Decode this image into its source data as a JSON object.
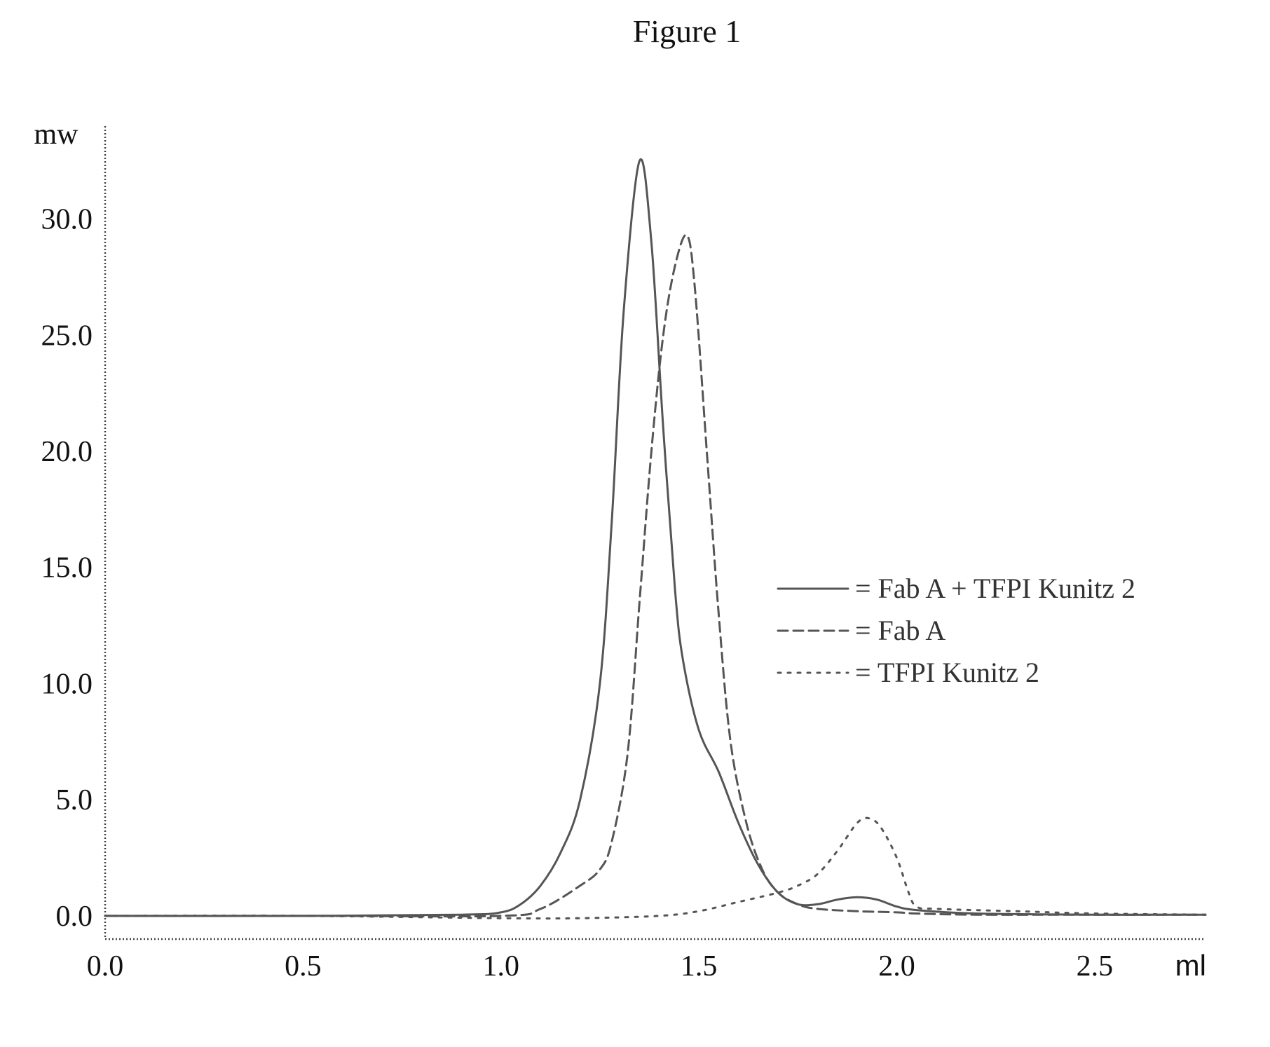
{
  "figure_title": "Figure 1",
  "chart_data": {
    "type": "line",
    "title": "Figure 1",
    "xlabel": "ml",
    "ylabel": "mw",
    "xlim": [
      0.0,
      2.78
    ],
    "ylim": [
      -1.0,
      34.0
    ],
    "x_ticks": [
      0.0,
      0.5,
      1.0,
      1.5,
      2.0,
      2.5
    ],
    "x_tick_labels": [
      "0.0",
      "0.5",
      "1.0",
      "1.5",
      "2.0",
      "2.5"
    ],
    "y_ticks": [
      0.0,
      5.0,
      10.0,
      15.0,
      20.0,
      25.0,
      30.0
    ],
    "y_tick_labels": [
      "0.0",
      "5.0",
      "10.0",
      "15.0",
      "20.0",
      "25.0",
      "30.0"
    ],
    "grid": false,
    "legend_position": "right",
    "series": [
      {
        "name": "Fab A + TFPI Kunitz 2",
        "style": "solid",
        "color": "#555555",
        "x": [
          0.0,
          0.5,
          0.9,
          1.0,
          1.05,
          1.1,
          1.15,
          1.2,
          1.25,
          1.28,
          1.31,
          1.35,
          1.38,
          1.41,
          1.44,
          1.46,
          1.5,
          1.55,
          1.6,
          1.65,
          1.7,
          1.75,
          1.8,
          1.85,
          1.9,
          1.95,
          2.0,
          2.05,
          2.2,
          2.5,
          2.78
        ],
        "y": [
          0.0,
          0.0,
          0.05,
          0.15,
          0.5,
          1.3,
          2.7,
          5.0,
          10.0,
          17.0,
          26.0,
          32.5,
          29.0,
          21.0,
          14.0,
          11.0,
          8.0,
          6.2,
          4.0,
          2.2,
          1.0,
          0.5,
          0.5,
          0.7,
          0.8,
          0.7,
          0.4,
          0.25,
          0.1,
          0.05,
          0.05
        ]
      },
      {
        "name": "Fab A",
        "style": "dashed",
        "color": "#555555",
        "x": [
          0.0,
          0.5,
          1.0,
          1.1,
          1.2,
          1.25,
          1.28,
          1.32,
          1.35,
          1.38,
          1.41,
          1.44,
          1.47,
          1.49,
          1.52,
          1.55,
          1.58,
          1.62,
          1.66,
          1.7,
          1.75,
          1.8,
          1.9,
          2.0,
          2.05,
          2.2,
          2.5,
          2.78
        ],
        "y": [
          0.0,
          0.0,
          0.0,
          0.3,
          1.3,
          2.0,
          3.2,
          7.0,
          13.5,
          20.0,
          25.0,
          28.0,
          29.3,
          27.0,
          20.0,
          13.0,
          7.5,
          4.0,
          2.0,
          1.0,
          0.5,
          0.3,
          0.2,
          0.15,
          0.1,
          0.05,
          0.05,
          0.05
        ]
      },
      {
        "name": "TFPI Kunitz 2",
        "style": "dotted",
        "color": "#555555",
        "x": [
          0.0,
          0.5,
          1.0,
          1.2,
          1.4,
          1.5,
          1.6,
          1.7,
          1.75,
          1.8,
          1.85,
          1.9,
          1.93,
          1.96,
          2.0,
          2.03,
          2.05,
          2.1,
          2.3,
          2.5,
          2.78
        ],
        "y": [
          0.0,
          0.0,
          -0.1,
          -0.1,
          0.0,
          0.2,
          0.6,
          1.0,
          1.3,
          1.8,
          2.8,
          4.0,
          4.2,
          3.8,
          2.5,
          1.0,
          0.4,
          0.3,
          0.2,
          0.1,
          0.05
        ]
      }
    ]
  }
}
